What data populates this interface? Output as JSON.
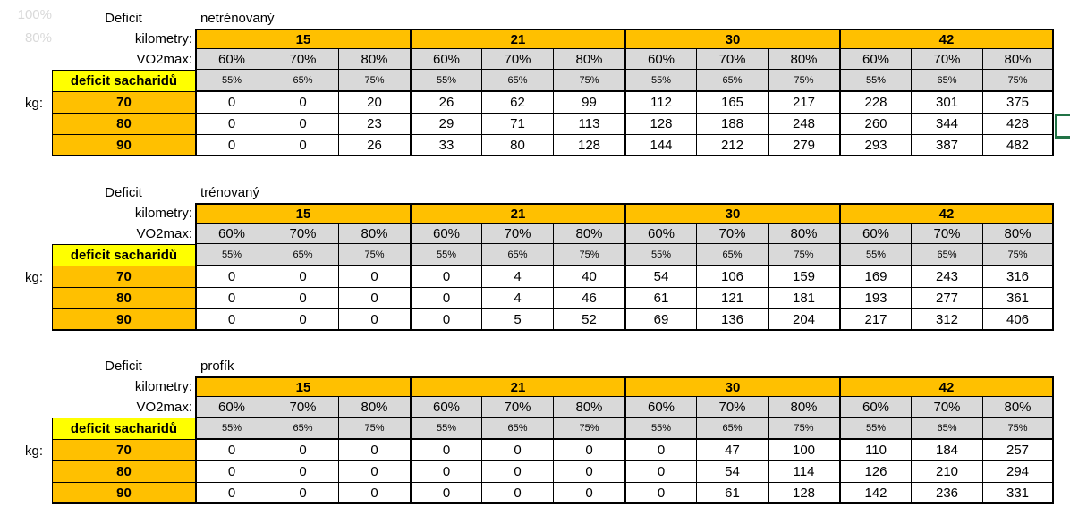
{
  "colors": {
    "orange": "#FFC000",
    "yellow": "#FFFF00",
    "gray_cell": "#D9D9D9",
    "faded_text": "#D9D9D9",
    "selection_green": "#217346",
    "background": "#FFFFFF",
    "grid_border": "#000000"
  },
  "leftover": [
    "100%",
    "80%"
  ],
  "labels": {
    "deficit": "Deficit",
    "kilometry": "kilometry:",
    "vo2max": "VO2max:",
    "deficit_sacharidu": "deficit sacharidů",
    "kg": "kg:"
  },
  "kilometry_values": [
    "15",
    "21",
    "30",
    "42"
  ],
  "vo2max_row": [
    "60%",
    "70%",
    "80%",
    "60%",
    "70%",
    "80%",
    "60%",
    "70%",
    "80%",
    "60%",
    "70%",
    "80%"
  ],
  "sacharidu_row": [
    "55%",
    "65%",
    "75%",
    "55%",
    "65%",
    "75%",
    "55%",
    "65%",
    "75%",
    "55%",
    "65%",
    "75%"
  ],
  "tables": [
    {
      "title": "netrénovaný",
      "rows": [
        {
          "kg": "70",
          "values": [
            0,
            0,
            20,
            26,
            62,
            99,
            112,
            165,
            217,
            228,
            301,
            375
          ]
        },
        {
          "kg": "80",
          "values": [
            0,
            0,
            23,
            29,
            71,
            113,
            128,
            188,
            248,
            260,
            344,
            428
          ]
        },
        {
          "kg": "90",
          "values": [
            0,
            0,
            26,
            33,
            80,
            128,
            144,
            212,
            279,
            293,
            387,
            482
          ]
        }
      ]
    },
    {
      "title": "trénovaný",
      "rows": [
        {
          "kg": "70",
          "values": [
            0,
            0,
            0,
            0,
            4,
            40,
            54,
            106,
            159,
            169,
            243,
            316
          ]
        },
        {
          "kg": "80",
          "values": [
            0,
            0,
            0,
            0,
            4,
            46,
            61,
            121,
            181,
            193,
            277,
            361
          ]
        },
        {
          "kg": "90",
          "values": [
            0,
            0,
            0,
            0,
            5,
            52,
            69,
            136,
            204,
            217,
            312,
            406
          ]
        }
      ]
    },
    {
      "title": "profík",
      "rows": [
        {
          "kg": "70",
          "values": [
            0,
            0,
            0,
            0,
            0,
            0,
            0,
            47,
            100,
            110,
            184,
            257
          ]
        },
        {
          "kg": "80",
          "values": [
            0,
            0,
            0,
            0,
            0,
            0,
            0,
            54,
            114,
            126,
            210,
            294
          ]
        },
        {
          "kg": "90",
          "values": [
            0,
            0,
            0,
            0,
            0,
            0,
            0,
            61,
            128,
            142,
            236,
            331
          ]
        }
      ]
    }
  ]
}
